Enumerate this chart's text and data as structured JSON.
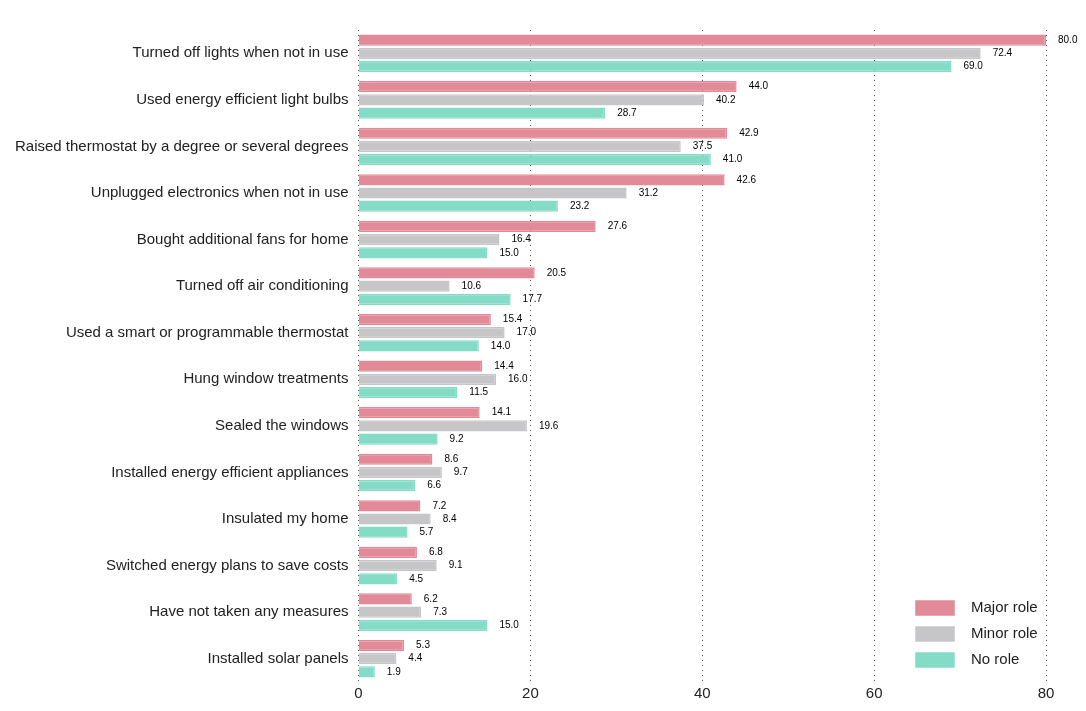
{
  "chart_data": {
    "type": "bar",
    "orientation": "horizontal",
    "categories": [
      "Turned off lights when not in use",
      "Used energy efficient light bulbs",
      "Raised thermostat by a degree or several degrees",
      "Unplugged electronics when not in use",
      "Bought additional fans for home",
      "Turned off air conditioning",
      "Used a smart or programmable thermostat",
      "Hung window treatments",
      "Sealed the windows",
      "Installed energy efficient appliances",
      "Insulated my home",
      "Switched energy plans to save costs",
      "Have not taken any measures",
      "Installed solar panels"
    ],
    "series": [
      {
        "name": "Major role",
        "color": "#e38a99",
        "values": [
          80.0,
          44.0,
          42.9,
          42.6,
          27.6,
          20.5,
          15.4,
          14.4,
          14.1,
          8.6,
          7.2,
          6.8,
          6.2,
          5.3
        ],
        "value_labels": [
          "80.0",
          "44.0",
          "42.9",
          "42.6",
          "27.6",
          "20.5",
          "15.4",
          "14.4",
          "14.1",
          "8.6",
          "7.2",
          "6.8",
          "6.2",
          "5.3"
        ]
      },
      {
        "name": "Minor role",
        "color": "#c6c6c8",
        "values": [
          72.4,
          40.2,
          37.5,
          31.2,
          16.4,
          10.6,
          17.0,
          16.0,
          19.6,
          9.7,
          8.4,
          9.1,
          7.3,
          4.4
        ],
        "value_labels": [
          "72.4",
          "40.2",
          "37.5",
          "31.2",
          "16.4",
          "10.6",
          "17.0",
          "16.0",
          "19.6",
          "9.7",
          "8.4",
          "9.1",
          "7.3",
          "4.4"
        ]
      },
      {
        "name": "No role",
        "color": "#84dcc6",
        "values": [
          69.0,
          28.7,
          41.0,
          23.2,
          15.0,
          17.7,
          14.0,
          11.5,
          9.2,
          6.6,
          5.7,
          4.5,
          15.0,
          1.9
        ],
        "value_labels": [
          "69.0",
          "28.7",
          "41.0",
          "23.2",
          "15.0",
          "17.7",
          "14.0",
          "11.5",
          "9.2",
          "6.6",
          "5.7",
          "4.5",
          "15.0",
          "1.9"
        ]
      }
    ],
    "xlim": [
      0,
      80
    ],
    "xticks": [
      0,
      20,
      40,
      60,
      80
    ],
    "grid": "x",
    "legend": "bottom right"
  }
}
